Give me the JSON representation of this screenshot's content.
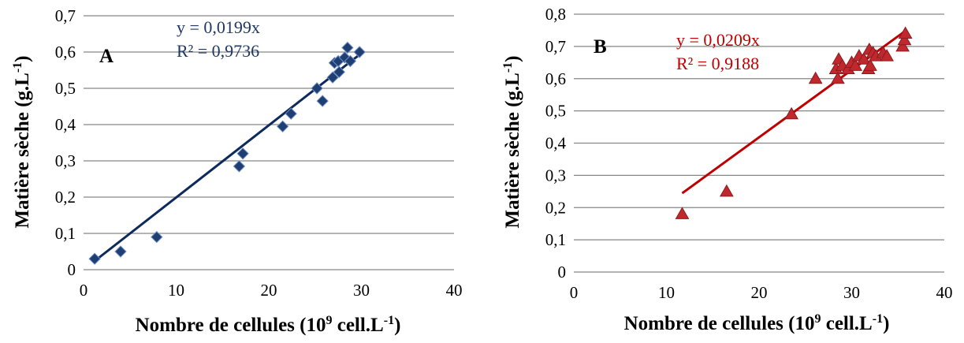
{
  "chart_data": [
    {
      "type": "scatter",
      "panel_label": "A",
      "xlabel": "Nombre de cellules (10",
      "xlabel_sup": "9",
      "xlabel_mid": " cell.L",
      "xlabel_sup2": "-1",
      "xlabel_end": ")",
      "ylabel": "Matière sèche (g.L",
      "ylabel_sup": "-1",
      "ylabel_end": ")",
      "xlim": [
        0,
        40
      ],
      "ylim": [
        0,
        0.7
      ],
      "xticks": [
        0,
        10,
        20,
        30,
        40
      ],
      "xtick_labels": [
        "0",
        "10",
        "20",
        "30",
        "40"
      ],
      "yticks": [
        0,
        0.1,
        0.2,
        0.3,
        0.4,
        0.5,
        0.6,
        0.7
      ],
      "ytick_labels": [
        "0",
        "0,1",
        "0,2",
        "0,3",
        "0,4",
        "0,5",
        "0,6",
        "0,7"
      ],
      "grid": "horizontal",
      "marker": "diamond",
      "color": "#1f3f73",
      "trendline_color": "#0d2a5c",
      "equation": "y = 0,0199x",
      "r2": "R² = 0,9736",
      "slope": 0.0199,
      "trendline_x": [
        1.2,
        30
      ],
      "x": [
        1.2,
        4.0,
        7.9,
        16.8,
        17.2,
        21.5,
        22.4,
        25.2,
        25.8,
        26.9,
        27.1,
        27.6,
        27.5,
        28.2,
        28.5,
        28.8,
        29.8
      ],
      "y": [
        0.03,
        0.05,
        0.09,
        0.285,
        0.32,
        0.395,
        0.43,
        0.5,
        0.465,
        0.53,
        0.57,
        0.545,
        0.575,
        0.585,
        0.612,
        0.575,
        0.6
      ]
    },
    {
      "type": "scatter",
      "panel_label": "B",
      "xlabel": "Nombre de cellules (10",
      "xlabel_sup": "9",
      "xlabel_mid": " cell.L",
      "xlabel_sup2": "-1",
      "xlabel_end": ")",
      "ylabel": "Matière sèche (g.L",
      "ylabel_sup": "-1",
      "ylabel_end": ")",
      "xlim": [
        0,
        40
      ],
      "ylim": [
        0,
        0.8
      ],
      "xticks": [
        0,
        10,
        20,
        30,
        40
      ],
      "xtick_labels": [
        "0",
        "10",
        "20",
        "30",
        "40"
      ],
      "yticks": [
        0,
        0.1,
        0.2,
        0.3,
        0.4,
        0.5,
        0.6,
        0.7,
        0.8
      ],
      "ytick_labels": [
        "0",
        "0,1",
        "0,2",
        "0,3",
        "0,4",
        "0,5",
        "0,6",
        "0,7",
        "0,8"
      ],
      "grid": "horizontal",
      "marker": "triangle",
      "color": "#c0282d",
      "trendline_color": "#c00000",
      "equation": "y = 0,0209x",
      "r2": "R² = 0,9188",
      "slope": 0.0209,
      "trendline_x": [
        11.7,
        35.7
      ],
      "x": [
        11.7,
        16.5,
        23.5,
        26.1,
        28.3,
        28.6,
        28.5,
        29.0,
        29.6,
        30.0,
        30.4,
        30.8,
        31.3,
        31.8,
        31.9,
        32.0,
        32.3,
        32.6,
        33.4,
        33.8,
        35.5,
        35.7,
        35.8
      ],
      "y": [
        0.18,
        0.25,
        0.49,
        0.6,
        0.63,
        0.66,
        0.6,
        0.64,
        0.63,
        0.65,
        0.64,
        0.67,
        0.66,
        0.63,
        0.69,
        0.64,
        0.68,
        0.67,
        0.68,
        0.67,
        0.7,
        0.72,
        0.74
      ]
    }
  ]
}
